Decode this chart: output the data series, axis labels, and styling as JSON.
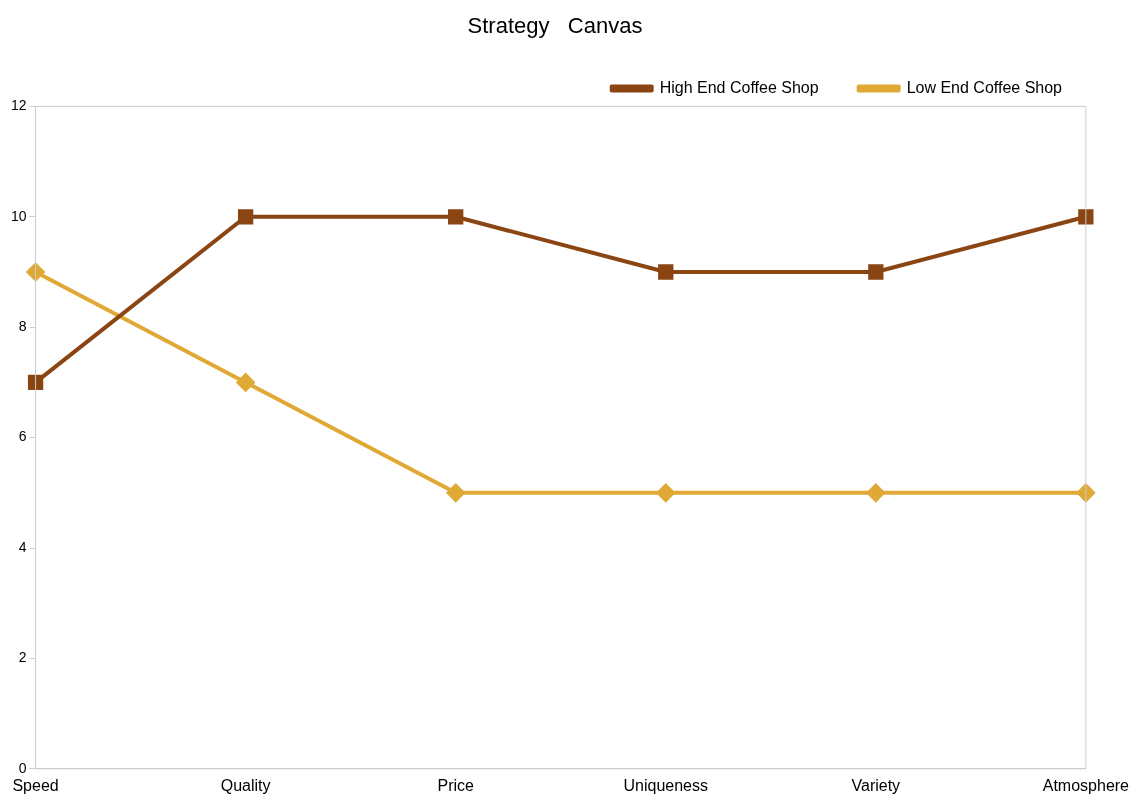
{
  "chart_data": {
    "type": "line",
    "title": "Strategy   Canvas",
    "categories": [
      "Speed",
      "Quality",
      "Price",
      "Uniqueness",
      "Variety",
      "Atmosphere"
    ],
    "series": [
      {
        "name": "High End Coffee Shop",
        "color": "#8b4513",
        "values": [
          7,
          10,
          10,
          9,
          9,
          10
        ],
        "marker": "square"
      },
      {
        "name": "Low End Coffee Shop",
        "color": "#e0a935",
        "values": [
          9,
          7,
          5,
          5,
          5,
          5
        ],
        "marker": "diamond"
      }
    ],
    "ylim": [
      0,
      12
    ],
    "yticks": [
      0,
      2,
      4,
      6,
      8,
      10,
      12
    ],
    "grid": false,
    "legend": "top right",
    "line_style": "solid"
  }
}
